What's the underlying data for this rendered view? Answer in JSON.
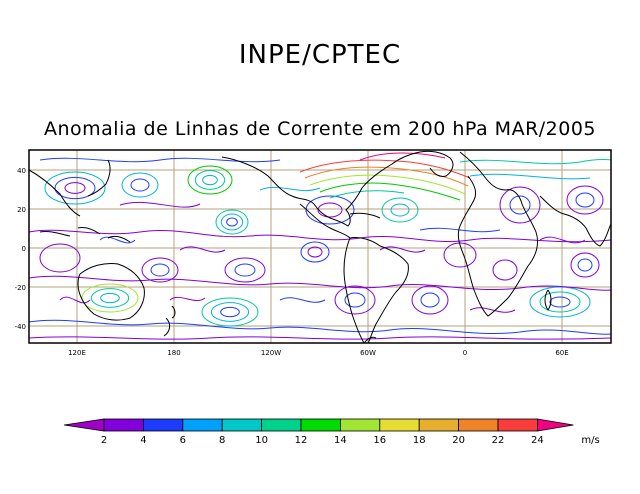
{
  "title": "INPE/CPTEC",
  "subtitle": "Anomalia de Linhas de Corrente em 200 hPa MAR/2005",
  "lat_labels": [
    "40",
    "20",
    "0",
    "-20",
    "-40"
  ],
  "lon_labels": [
    "120E",
    "180",
    "120W",
    "60W",
    "0",
    "60E"
  ],
  "colorbar": {
    "unit": "m/s",
    "labels": [
      "2",
      "4",
      "6",
      "8",
      "10",
      "12",
      "14",
      "16",
      "18",
      "20",
      "22",
      "24"
    ],
    "colors": [
      "#a000c8",
      "#8200dc",
      "#1e3cff",
      "#00a0ff",
      "#00c8c8",
      "#00d28c",
      "#00dc00",
      "#a0e632",
      "#e6dc32",
      "#e6af2d",
      "#f08228",
      "#fa3c3c",
      "#f00082"
    ]
  },
  "streamline_colors": {
    "purple": "#8200dc",
    "blue": "#1e3cff",
    "cyan": "#00b4dc",
    "teal": "#00c8a0",
    "green": "#00c800",
    "lime": "#a0e632",
    "orange": "#f08228",
    "red": "#fa3c3c",
    "magenta": "#f00082"
  },
  "map_colors": {
    "grid": "#b4a078",
    "coast": "#000000",
    "frame": "#000000"
  }
}
